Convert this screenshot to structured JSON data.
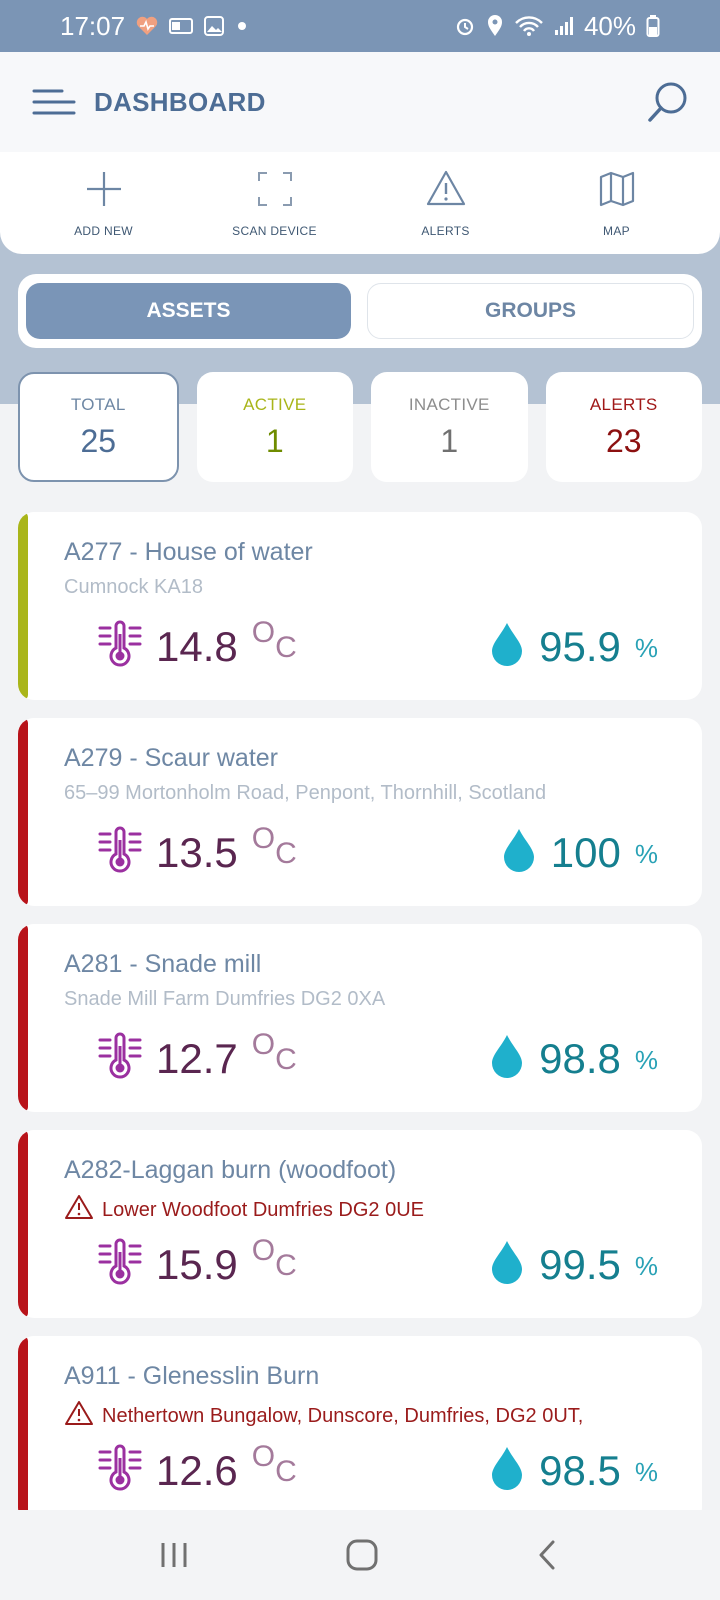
{
  "status_bar": {
    "time": "17:07",
    "battery": "40%",
    "icons_left": [
      "heart-rate-icon",
      "outlook-icon",
      "gallery-icon",
      "dot-icon"
    ],
    "icons_right": [
      "alarm-icon",
      "location-icon",
      "wifi-icon",
      "signal-icon",
      "battery-icon"
    ]
  },
  "header": {
    "title": "DASHBOARD",
    "menu_icon": "hamburger-menu-icon",
    "search_icon": "search-icon",
    "accent": "#4d6d95"
  },
  "quick_actions": [
    {
      "label": "ADD NEW",
      "icon": "plus-icon"
    },
    {
      "label": "SCAN DEVICE",
      "icon": "scan-frame-icon"
    },
    {
      "label": "ALERTS",
      "icon": "warning-triangle-icon"
    },
    {
      "label": "MAP",
      "icon": "map-icon"
    }
  ],
  "tabs": {
    "assets": "ASSETS",
    "groups": "GROUPS",
    "selected": "ASSETS"
  },
  "stats": {
    "total": {
      "label": "TOTAL",
      "value": "25",
      "color": "#4d6d95"
    },
    "active": {
      "label": "ACTIVE",
      "value": "1",
      "color": "#8ea600"
    },
    "inactive": {
      "label": "INACTIVE",
      "value": "1",
      "color": "#7a7a7a"
    },
    "alerts": {
      "label": "ALERTS",
      "value": "23",
      "color": "#9a1b1b"
    }
  },
  "units": {
    "temp_degree": "O",
    "temp_c": "C",
    "humidity": "%"
  },
  "assets": [
    {
      "name": "A277 - House of water",
      "location": "Cumnock KA18",
      "alert": false,
      "status_color": "#a9b51a",
      "temperature": "14.8",
      "humidity": "95.9"
    },
    {
      "name": "A279 - Scaur water",
      "location": "65–99 Mortonholm Road, Penpont, Thornhill, Scotland",
      "alert": false,
      "status_color": "#b8131a",
      "temperature": "13.5",
      "humidity": "100"
    },
    {
      "name": "A281 - Snade mill",
      "location": "Snade Mill Farm Dumfries DG2 0XA",
      "alert": false,
      "status_color": "#b8131a",
      "temperature": "12.7",
      "humidity": "98.8"
    },
    {
      "name": "A282-Laggan burn (woodfoot)",
      "location": "Lower Woodfoot Dumfries DG2 0UE",
      "alert": true,
      "status_color": "#b8131a",
      "temperature": "15.9",
      "humidity": "99.5"
    },
    {
      "name": "A911 - Glenesslin Burn",
      "location": "Nethertown Bungalow, Dunscore, Dumfries, DG2 0UT,",
      "alert": true,
      "status_color": "#b8131a",
      "temperature": "12.6",
      "humidity": "98.5"
    }
  ],
  "nav": [
    "recent-apps-icon",
    "home-icon",
    "back-icon"
  ]
}
